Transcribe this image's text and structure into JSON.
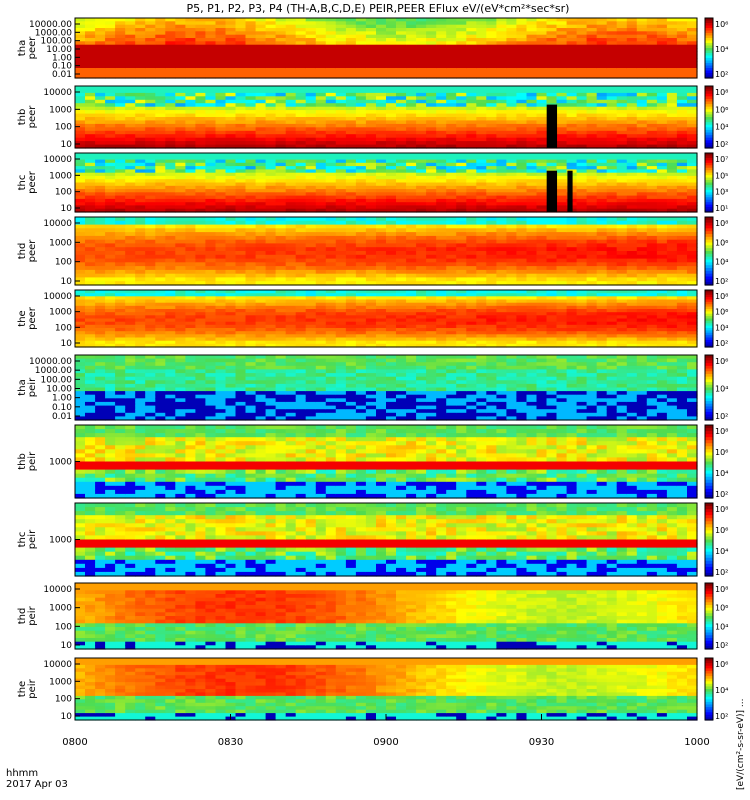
{
  "title": "P5, P1, P2, P3, P4 (TH-A,B,C,D,E) PEIR,PEER EFlux eV/(eV*cm²*sec*sr)",
  "time_axis": {
    "label_line1": "hhmm",
    "label_line2": "2017 Apr 03",
    "tick_labels": [
      "0800",
      "0830",
      "0900",
      "0930",
      "1000"
    ]
  },
  "colorbar_label": "[eV/(cm²-s-sr-eV)] ...",
  "chart_data": [
    {
      "type": "heatmap",
      "ylabel": [
        "tha",
        "peer"
      ],
      "ytick_labels": [
        "10000.00",
        "1000.00",
        "100.00",
        "10.00",
        "1.00",
        "0.10",
        "0.01"
      ],
      "cbar_ticks": [
        "10⁶",
        "10⁴",
        "10²"
      ],
      "profile": "thapeer"
    },
    {
      "type": "heatmap",
      "ylabel": [
        "thb",
        "peer"
      ],
      "ytick_labels": [
        "10000",
        "1000",
        "100",
        "10"
      ],
      "cbar_ticks": [
        "10⁸",
        "10⁶",
        "10⁴",
        "10²"
      ],
      "profile": "peer",
      "gaps": [
        "09:31-09:33"
      ]
    },
    {
      "type": "heatmap",
      "ylabel": [
        "thc",
        "peer"
      ],
      "ytick_labels": [
        "10000",
        "1000",
        "100",
        "10"
      ],
      "cbar_ticks": [
        "10⁷",
        "10⁵",
        "10³",
        "10¹"
      ],
      "profile": "peer",
      "gaps": [
        "09:31-09:33",
        "09:35-09:36"
      ]
    },
    {
      "type": "heatmap",
      "ylabel": [
        "thd",
        "peer"
      ],
      "ytick_labels": [
        "10000",
        "1000",
        "100",
        "10"
      ],
      "cbar_ticks": [
        "10⁸",
        "10⁶",
        "10⁴",
        "10²"
      ],
      "profile": "peerhot"
    },
    {
      "type": "heatmap",
      "ylabel": [
        "the",
        "peer"
      ],
      "ytick_labels": [
        "10000",
        "1000",
        "100",
        "10"
      ],
      "cbar_ticks": [
        "10⁸",
        "10⁶",
        "10⁴",
        "10²"
      ],
      "profile": "peerhot"
    },
    {
      "type": "heatmap",
      "ylabel": [
        "tha",
        "peir"
      ],
      "ytick_labels": [
        "10000.00",
        "1000.00",
        "100.00",
        "10.00",
        "1.00",
        "0.10",
        "0.01"
      ],
      "cbar_ticks": [
        "10⁶",
        "10⁴",
        "10²"
      ],
      "profile": "peirlow"
    },
    {
      "type": "heatmap",
      "ylabel": [
        "thb",
        "peir"
      ],
      "ytick_labels": [
        "1000"
      ],
      "cbar_ticks": [
        "10⁸",
        "10⁶",
        "10⁴",
        "10²"
      ],
      "profile": "peirnarrow"
    },
    {
      "type": "heatmap",
      "ylabel": [
        "thc",
        "peir"
      ],
      "ytick_labels": [
        "1000"
      ],
      "cbar_ticks": [
        "10⁸",
        "10⁶",
        "10⁴",
        "10²"
      ],
      "profile": "peirnarrow"
    },
    {
      "type": "heatmap",
      "ylabel": [
        "thd",
        "peir"
      ],
      "ytick_labels": [
        "10000",
        "1000",
        "100",
        "10"
      ],
      "cbar_ticks": [
        "10⁸",
        "10⁶",
        "10⁴",
        "10²"
      ],
      "profile": "peirhot"
    },
    {
      "type": "heatmap",
      "ylabel": [
        "the",
        "peir"
      ],
      "ytick_labels": [
        "10000",
        "1000",
        "100",
        "10"
      ],
      "cbar_ticks": [
        "10⁶",
        "10⁴",
        "10²"
      ],
      "profile": "peirhot"
    }
  ]
}
